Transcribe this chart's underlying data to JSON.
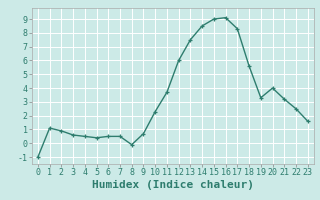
{
  "x": [
    0,
    1,
    2,
    3,
    4,
    5,
    6,
    7,
    8,
    9,
    10,
    11,
    12,
    13,
    14,
    15,
    16,
    17,
    18,
    19,
    20,
    21,
    22,
    23
  ],
  "y": [
    -1.0,
    1.1,
    0.9,
    0.6,
    0.5,
    0.4,
    0.5,
    0.5,
    -0.1,
    0.7,
    2.3,
    3.7,
    6.0,
    7.5,
    8.5,
    9.0,
    9.1,
    8.3,
    5.6,
    3.3,
    4.0,
    3.2,
    2.5,
    1.6
  ],
  "line_color": "#2e7d6e",
  "marker": "+",
  "marker_size": 3,
  "linewidth": 1.0,
  "xlabel": "Humidex (Indice chaleur)",
  "xlim": [
    -0.5,
    23.5
  ],
  "ylim": [
    -1.5,
    9.8
  ],
  "yticks": [
    -1,
    0,
    1,
    2,
    3,
    4,
    5,
    6,
    7,
    8,
    9
  ],
  "xtick_labels": [
    "0",
    "1",
    "2",
    "3",
    "4",
    "5",
    "6",
    "7",
    "8",
    "9",
    "10",
    "11",
    "12",
    "13",
    "14",
    "15",
    "16",
    "17",
    "18",
    "19",
    "20",
    "21",
    "22",
    "23"
  ],
  "bg_color": "#cceae7",
  "grid_color": "#ffffff",
  "tick_fontsize": 6,
  "xlabel_fontsize": 8,
  "label_color": "#2e7d6e"
}
